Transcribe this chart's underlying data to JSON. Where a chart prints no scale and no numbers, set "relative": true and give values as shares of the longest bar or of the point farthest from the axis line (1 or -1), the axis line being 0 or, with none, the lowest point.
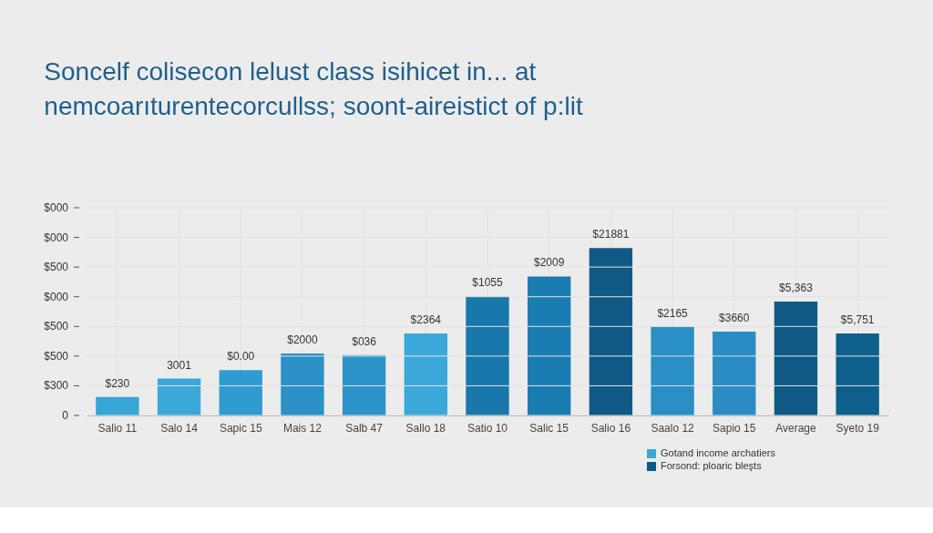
{
  "chart_data": {
    "type": "bar",
    "title": "Soncelf colisecon lelust class isihicet in... at nemcoarıturentecorcullss; soont-aireistict of p:lit",
    "categories": [
      "Salio 11",
      "Salo 14",
      "Sapic 15",
      "Mais 12",
      "Salb 47",
      "Sallo 18",
      "Satio 10",
      "Salic 15",
      "Salio 16",
      "Saalo 12",
      "Sapio 15",
      "Average",
      "Syeto 19"
    ],
    "relative": true,
    "series": [
      {
        "name": "Gotand income archatiers",
        "color": "#3aa8d6",
        "colors": [
          "#35a6d6",
          "#3aa8d8",
          "#2f9bd0",
          "#2a90c6",
          "#2c93c8",
          "#3aa8d8",
          null,
          null,
          null,
          "#2a8fc4",
          "#2a8cc2",
          null,
          null
        ],
        "values": [
          0.11,
          0.22,
          0.27,
          0.37,
          0.36,
          0.49,
          null,
          null,
          null,
          0.53,
          0.5,
          null,
          null
        ]
      },
      {
        "name": "Forsond: ploaric bleşts",
        "color": "#0f5a85",
        "colors": [
          null,
          null,
          null,
          null,
          null,
          null,
          "#1877ab",
          "#1a7db2",
          "#0f5a85",
          null,
          null,
          "#0f5a85",
          "#0f5f8c"
        ],
        "values": [
          null,
          null,
          null,
          null,
          null,
          null,
          0.71,
          0.83,
          1,
          null,
          null,
          0.68,
          0.49
        ]
      }
    ],
    "value_labels": [
      "$230",
      "3001",
      "$0.00",
      "$2000",
      "$036",
      "$2364",
      "$1055",
      "$2009",
      "$21881",
      "$2165",
      "$3660",
      "$5,363",
      "$5,751"
    ],
    "annotations": [
      "0",
      "$300",
      "$500",
      "$500",
      "$000",
      "$500",
      "$000",
      "$000"
    ],
    "grid": true,
    "legend": "bottom right"
  }
}
